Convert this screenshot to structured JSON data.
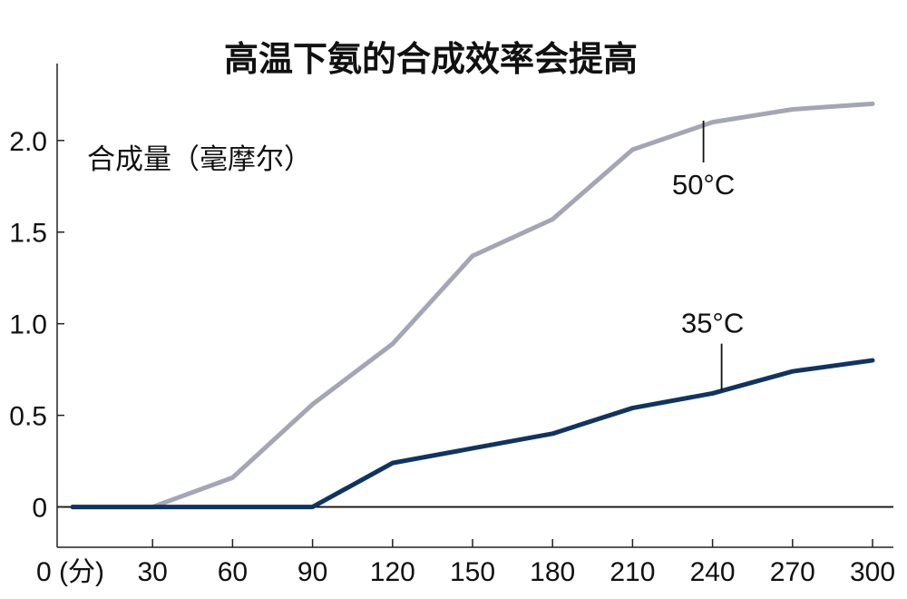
{
  "chart_data": {
    "type": "line",
    "title": "高温下氨的合成效率会提高",
    "ylabel": "合成量（毫摩尔）",
    "xlabel": "",
    "x": [
      0,
      30,
      60,
      90,
      120,
      150,
      180,
      210,
      240,
      270,
      300
    ],
    "x_tick_labels": [
      "0 (分)",
      "30",
      "60",
      "90",
      "120",
      "150",
      "180",
      "210",
      "240",
      "270",
      "300"
    ],
    "y_ticks": [
      0,
      0.5,
      1.0,
      1.5,
      2.0
    ],
    "y_tick_labels": [
      "0",
      "0.5",
      "1.0",
      "1.5",
      "2.0"
    ],
    "xlim": [
      0,
      300
    ],
    "ylim": [
      -0.22,
      2.42
    ],
    "grid": false,
    "series": [
      {
        "name": "50°C",
        "color": "#a4a6b5",
        "values": [
          0,
          0,
          0.16,
          0.56,
          0.89,
          1.37,
          1.57,
          1.95,
          2.1,
          2.17,
          2.2
        ]
      },
      {
        "name": "35°C",
        "color": "#0f3460",
        "values": [
          0,
          0,
          0,
          0,
          0.24,
          0.32,
          0.4,
          0.54,
          0.62,
          0.74,
          0.8
        ]
      }
    ]
  }
}
